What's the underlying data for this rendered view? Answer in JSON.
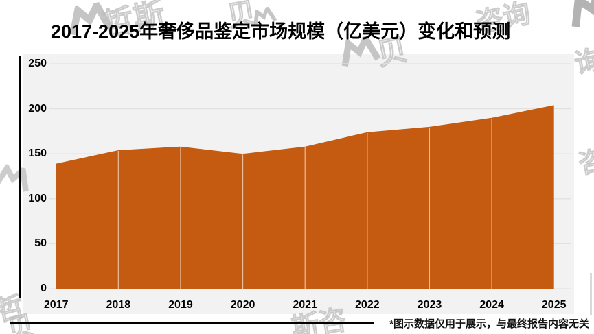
{
  "title": "2017-2025年奢侈品鉴定市场规模（亿美元）变化和预测",
  "footnote": "*图示数据仅用于展示，与最终报告内容无关",
  "watermark": {
    "texts": [
      "哲斯",
      "贝",
      "咨询",
      "询",
      "哲",
      "斯咨",
      "咨",
      "贝"
    ]
  },
  "chart_data": {
    "type": "area",
    "title": "2017-2025年奢侈品鉴定市场规模（亿美元）变化和预测",
    "categories": [
      "2017",
      "2018",
      "2019",
      "2020",
      "2021",
      "2022",
      "2023",
      "2024",
      "2025"
    ],
    "values": [
      139,
      154,
      158,
      150,
      158,
      174,
      180,
      190,
      204
    ],
    "unit": "亿美元",
    "xlabel": "",
    "ylabel": "",
    "ylim": [
      0,
      250
    ],
    "yticks": [
      0,
      50,
      100,
      150,
      200,
      250
    ],
    "grid": true,
    "legend": false,
    "area_color": "#C55A11",
    "panel_bg": "#F2F2F2",
    "grid_color": "#E1E1E1",
    "divider_color": "rgba(255,255,255,0.6)",
    "axis_line_color": "#000000"
  }
}
